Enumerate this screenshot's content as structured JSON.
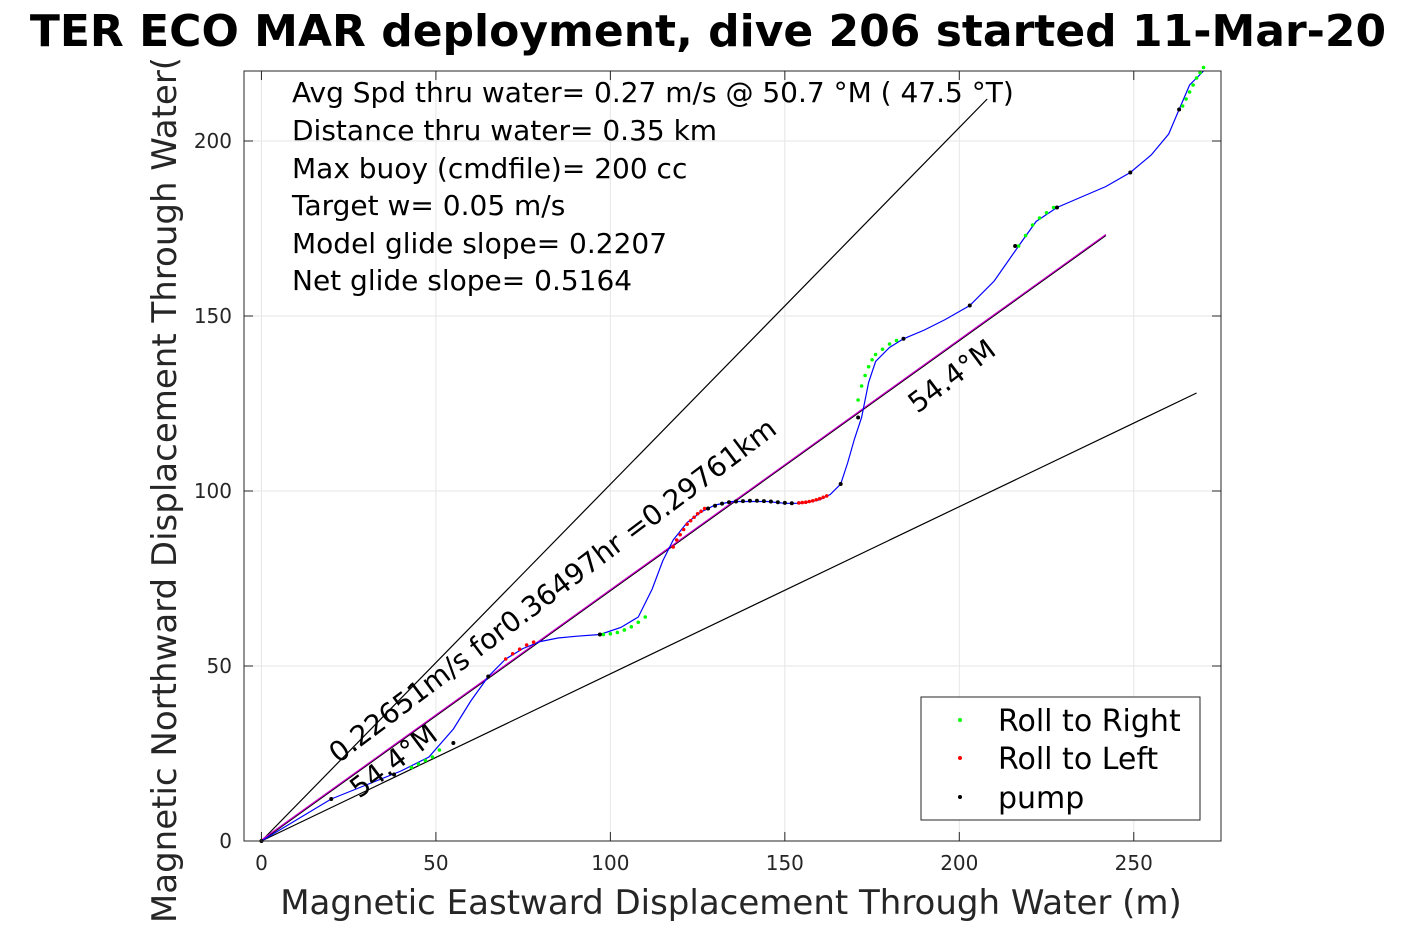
{
  "chart_data": {
    "type": "line",
    "title": "TER ECO MAR deployment, dive 206 started 11-Mar-20",
    "xlabel": "Magnetic Eastward Displacement Through Water (m)",
    "ylabel": "Magnetic Northward Displacement Through Water(",
    "xlim": [
      -5,
      275
    ],
    "ylim": [
      0,
      220
    ],
    "xticks": [
      0,
      50,
      100,
      150,
      200,
      250
    ],
    "yticks": [
      0,
      50,
      100,
      150,
      200
    ],
    "xtick_labels": [
      "0",
      "50",
      "100",
      "150",
      "200",
      "250"
    ],
    "ytick_labels": [
      "0",
      "50",
      "100",
      "150",
      "200"
    ],
    "grid": true,
    "legend_position": "bottom-right",
    "stats_text": [
      "Avg Spd thru water=  0.27 m/s @  50.7 °M ( 47.5 °T)",
      "Distance thru water=  0.35 km",
      "Max buoy (cmdfile)= 200 cc",
      "Target w= 0.05 m/s",
      "Model glide slope= 0.2207",
      "Net glide slope= 0.5164"
    ],
    "rotated_labels": [
      {
        "text": "0.22651m/s for0.36497hr =0.29761km",
        "x": 22,
        "y": 22,
        "angle_data": 37
      },
      {
        "text": "54.4°M",
        "x": 28,
        "y": 12,
        "angle_data": 37
      },
      {
        "text": "54.4°M",
        "x": 188,
        "y": 122,
        "angle_data": 37
      }
    ],
    "reference_lines": [
      {
        "name": "upper-bound",
        "x": [
          0,
          208
        ],
        "y": [
          0,
          212
        ]
      },
      {
        "name": "lower-bound",
        "x": [
          0,
          268
        ],
        "y": [
          0,
          128
        ]
      },
      {
        "name": "heading",
        "x": [
          0,
          242
        ],
        "y": [
          0,
          173
        ]
      }
    ],
    "heading_line": {
      "x": [
        0,
        242
      ],
      "y": [
        0,
        173
      ]
    },
    "series": [
      {
        "name": "trajectory",
        "color": "#0000ff",
        "x": [
          0,
          10,
          20,
          30,
          40,
          48,
          55,
          60,
          65,
          70,
          75,
          80,
          85,
          90,
          97,
          103,
          108,
          112,
          115,
          118,
          122,
          126,
          130,
          135,
          140,
          145,
          150,
          155,
          160,
          163,
          166,
          168,
          170,
          172,
          174,
          176,
          180,
          184,
          190,
          196,
          203,
          210,
          217,
          222,
          228,
          235,
          242,
          249,
          255,
          260,
          263,
          266,
          270
        ],
        "y": [
          0,
          6,
          12,
          16,
          20,
          24,
          32,
          40,
          47,
          52,
          55,
          57,
          58,
          58.5,
          59,
          61,
          64,
          72,
          80,
          86,
          91,
          94,
          96,
          97,
          97,
          97,
          96.5,
          96.5,
          97.5,
          99,
          102,
          108,
          115,
          121,
          131,
          137,
          141,
          143.5,
          146,
          149,
          153,
          160,
          170,
          177,
          181,
          184,
          187,
          191,
          196,
          202,
          209,
          216,
          220
        ]
      },
      {
        "name": "Roll to Right",
        "color": "#00ff00",
        "x": [
          43,
          45,
          47,
          49,
          51,
          98,
          100,
          102,
          104,
          106,
          108,
          110,
          171,
          172,
          173,
          174,
          175,
          176,
          178,
          180,
          182,
          217,
          219,
          221,
          223,
          225,
          227,
          264,
          265,
          266,
          267,
          268,
          269,
          270
        ],
        "y": [
          21,
          22,
          23,
          24,
          26,
          59,
          59.2,
          59.6,
          60.3,
          61.2,
          62.5,
          64,
          126,
          130,
          133,
          135.5,
          137.5,
          139,
          140.5,
          142,
          143,
          170,
          173,
          176,
          178,
          179.5,
          181,
          210,
          212,
          214,
          216,
          218,
          219.5,
          221
        ]
      },
      {
        "name": "Roll to Left",
        "color": "#ff0000",
        "x": [
          0,
          70,
          72,
          74,
          76,
          78,
          118,
          119,
          120,
          121,
          122,
          123,
          124,
          125,
          126,
          127,
          154,
          155,
          156,
          157,
          158,
          159,
          160,
          161,
          162
        ],
        "y": [
          0,
          52,
          53.5,
          54.8,
          56,
          56.8,
          84,
          86,
          87.5,
          89,
          90.5,
          91.5,
          92.5,
          93.5,
          94.2,
          95,
          96.6,
          96.7,
          96.8,
          97,
          97.2,
          97.5,
          97.8,
          98.2,
          98.6
        ]
      },
      {
        "name": "pump",
        "color": "#000000",
        "x": [
          0,
          20,
          38,
          55,
          65,
          97,
          128,
          130,
          132,
          134,
          136,
          138,
          140,
          142,
          144,
          146,
          148,
          150,
          152,
          166,
          171,
          184,
          203,
          216,
          228,
          249,
          263
        ],
        "y": [
          0,
          12,
          19,
          28,
          47,
          59,
          95,
          95.8,
          96.4,
          96.8,
          97,
          97.1,
          97.2,
          97.2,
          97.1,
          97,
          96.8,
          96.6,
          96.5,
          102,
          121,
          143.5,
          153,
          170,
          181,
          191,
          209
        ]
      }
    ],
    "legend": [
      {
        "label": "Roll to Right",
        "color": "#00ff00"
      },
      {
        "label": "Roll to Left",
        "color": "#ff0000"
      },
      {
        "label": "pump",
        "color": "#000000"
      }
    ],
    "colors": {
      "trajectory": "#0000ff",
      "heading_line": "#cc00cc",
      "reference": "#000000",
      "grid": "#e6e6e6",
      "axis": "#262626"
    }
  }
}
